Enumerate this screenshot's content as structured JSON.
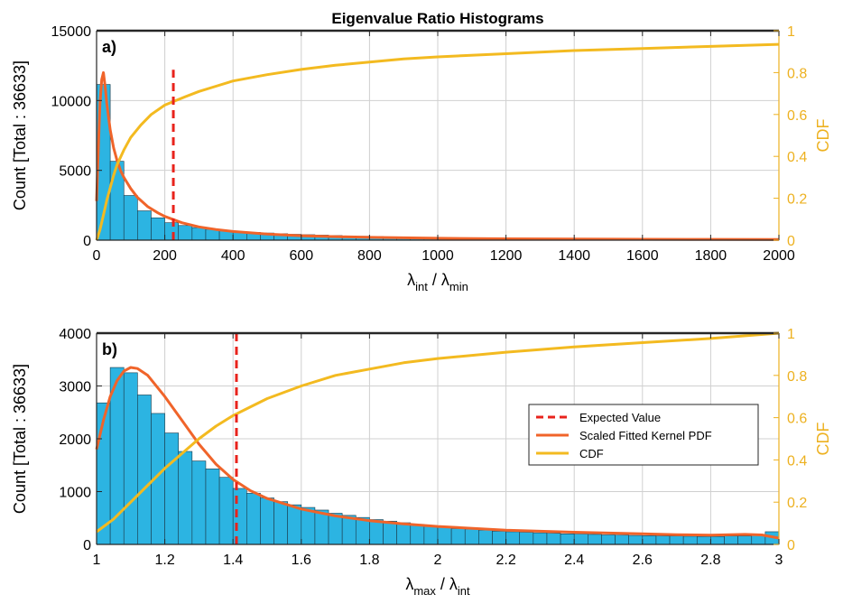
{
  "colors": {
    "bar_fill": "#2CB4E2",
    "bar_edge": "#1B3A4A",
    "pdf_line": "#F0642A",
    "cdf_line": "#F3BA20",
    "expected": "#E8231C",
    "cdf_axis": "#EDB120"
  },
  "chart_data": [
    {
      "type": "bar",
      "panel_label": "a)",
      "title": "Eigenvalue Ratio Histograms",
      "xlabel": {
        "symbol_num": "λ",
        "sub_num": "int",
        "slash": " / ",
        "symbol_den": "λ",
        "sub_den": "min"
      },
      "ylabel": "Count [Total : 36633]",
      "y2label": "CDF",
      "xlim": [
        0,
        2000
      ],
      "ylim": [
        0,
        15000
      ],
      "y2lim": [
        0,
        1
      ],
      "xticks": [
        "0",
        "200",
        "400",
        "600",
        "800",
        "1000",
        "1200",
        "1400",
        "1600",
        "1800",
        "2000"
      ],
      "yticks": [
        "0",
        "5000",
        "10000",
        "15000"
      ],
      "y2ticks": [
        "0",
        "0.2",
        "0.4",
        "0.6",
        "0.8",
        "1"
      ],
      "grid": true,
      "bin_width": 40,
      "bin_start": 0,
      "counts": [
        11150,
        5650,
        3200,
        2100,
        1600,
        1250,
        1050,
        900,
        780,
        690,
        620,
        560,
        510,
        460,
        420,
        390,
        360,
        330,
        300,
        280,
        260,
        240,
        220,
        205,
        190,
        180,
        170,
        160,
        150,
        140,
        132,
        125,
        118,
        112,
        106,
        100,
        95,
        90,
        86,
        82,
        78,
        75,
        72,
        69,
        66,
        63,
        60,
        58,
        56,
        54
      ],
      "pdf_x": [
        0,
        5,
        10,
        15,
        20,
        25,
        30,
        40,
        50,
        60,
        70,
        80,
        100,
        120,
        150,
        180,
        200,
        250,
        300,
        350,
        400,
        500,
        600,
        700,
        800,
        1000,
        1200,
        1400,
        1600,
        1800,
        2000
      ],
      "pdf_y": [
        2800,
        6500,
        9800,
        11500,
        12000,
        11000,
        9800,
        7900,
        6600,
        5700,
        5000,
        4500,
        3700,
        3050,
        2400,
        1950,
        1700,
        1250,
        950,
        760,
        620,
        430,
        320,
        250,
        200,
        135,
        100,
        80,
        65,
        55,
        45
      ],
      "cdf_x": [
        0,
        10,
        20,
        30,
        40,
        50,
        60,
        80,
        100,
        130,
        160,
        200,
        230,
        260,
        300,
        350,
        400,
        500,
        600,
        700,
        800,
        900,
        1000,
        1200,
        1400,
        1600,
        1800,
        2000
      ],
      "cdf_y": [
        0.0,
        0.05,
        0.12,
        0.19,
        0.25,
        0.31,
        0.36,
        0.43,
        0.49,
        0.55,
        0.6,
        0.645,
        0.665,
        0.685,
        0.71,
        0.735,
        0.76,
        0.79,
        0.815,
        0.835,
        0.85,
        0.865,
        0.875,
        0.89,
        0.905,
        0.915,
        0.925,
        0.935
      ],
      "expected_value": 225,
      "expected_ymax": 12200
    },
    {
      "type": "bar",
      "panel_label": "b)",
      "xlabel": {
        "symbol_num": "λ",
        "sub_num": "max",
        "slash": " / ",
        "symbol_den": "λ",
        "sub_den": "int"
      },
      "ylabel": "Count [Total : 36633]",
      "y2label": "CDF",
      "xlim": [
        1,
        3
      ],
      "ylim": [
        0,
        4000
      ],
      "y2lim": [
        0,
        1
      ],
      "xticks": [
        "1",
        "1.2",
        "1.4",
        "1.6",
        "1.8",
        "2",
        "2.2",
        "2.4",
        "2.6",
        "2.8",
        "3"
      ],
      "yticks": [
        "0",
        "1000",
        "2000",
        "3000",
        "4000"
      ],
      "y2ticks": [
        "0",
        "0.2",
        "0.4",
        "0.6",
        "0.8",
        "1"
      ],
      "grid": true,
      "bin_width": 0.04,
      "bin_start": 1,
      "counts": [
        2680,
        3350,
        3250,
        2830,
        2480,
        2110,
        1760,
        1580,
        1430,
        1270,
        1060,
        970,
        880,
        810,
        750,
        700,
        650,
        590,
        550,
        510,
        470,
        440,
        410,
        380,
        350,
        330,
        300,
        290,
        270,
        250,
        240,
        230,
        220,
        210,
        200,
        195,
        190,
        180,
        175,
        170,
        165,
        160,
        160,
        155,
        150,
        150,
        160,
        160,
        170,
        240
      ],
      "pdf_x": [
        1,
        1.02,
        1.04,
        1.06,
        1.08,
        1.1,
        1.12,
        1.15,
        1.2,
        1.25,
        1.3,
        1.35,
        1.4,
        1.45,
        1.5,
        1.6,
        1.7,
        1.8,
        1.9,
        2.0,
        2.2,
        2.4,
        2.6,
        2.7,
        2.8,
        2.9,
        2.95,
        3.0
      ],
      "pdf_y": [
        1800,
        2350,
        2800,
        3100,
        3280,
        3350,
        3330,
        3200,
        2800,
        2350,
        1900,
        1520,
        1230,
        1020,
        870,
        670,
        540,
        450,
        390,
        340,
        270,
        230,
        200,
        185,
        175,
        190,
        180,
        120
      ],
      "cdf_x": [
        1,
        1.05,
        1.1,
        1.15,
        1.2,
        1.25,
        1.3,
        1.35,
        1.4,
        1.45,
        1.5,
        1.6,
        1.7,
        1.8,
        1.9,
        2.0,
        2.2,
        2.4,
        2.6,
        2.8,
        3.0
      ],
      "cdf_y": [
        0.06,
        0.12,
        0.2,
        0.28,
        0.36,
        0.43,
        0.5,
        0.56,
        0.61,
        0.65,
        0.69,
        0.75,
        0.8,
        0.83,
        0.86,
        0.88,
        0.91,
        0.935,
        0.955,
        0.975,
        1.0
      ],
      "expected_value": 1.41,
      "expected_ymax": 4000,
      "legend": {
        "position": "right",
        "entries": [
          "Expected Value",
          "Scaled Fitted Kernel PDF",
          "CDF"
        ]
      }
    }
  ]
}
